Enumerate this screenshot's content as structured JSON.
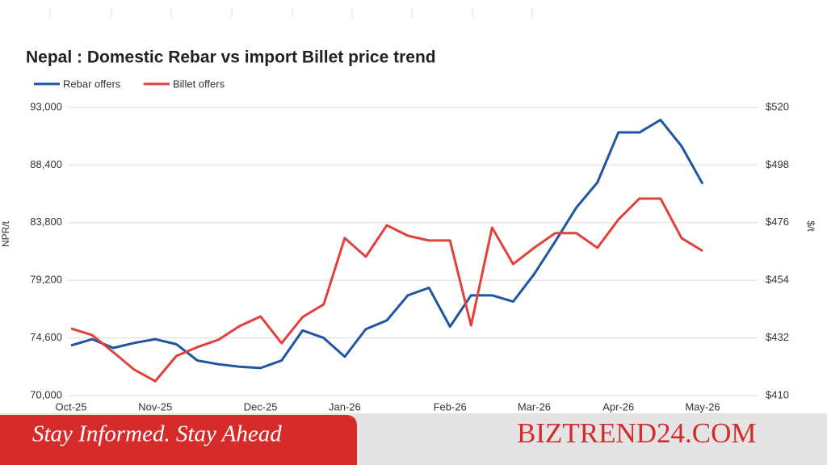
{
  "chart_data": {
    "type": "line",
    "title": "Nepal : Domestic Rebar vs import Billet price trend",
    "ylabel": "NPR/t",
    "y2label": "$/t",
    "categories": [
      "Oct-25",
      null,
      null,
      null,
      "Nov-25",
      null,
      null,
      null,
      null,
      "Dec-25",
      null,
      null,
      null,
      "Jan-26",
      null,
      null,
      null,
      null,
      "Feb-26",
      null,
      null,
      null,
      "Mar-26",
      null,
      null,
      null,
      "Apr-26",
      null,
      null,
      null,
      "May-26"
    ],
    "series": [
      {
        "name": "Rebar offers",
        "color": "#1f56a3",
        "values": [
          74000,
          74500,
          73800,
          74200,
          74500,
          74100,
          72800,
          72500,
          72300,
          72200,
          72800,
          75200,
          74600,
          73100,
          75300,
          76000,
          78000,
          78600,
          75500,
          78000,
          78000,
          77500,
          79700,
          82300,
          85000,
          87000,
          91000,
          91000,
          92000,
          89900,
          86900
        ]
      },
      {
        "name": "Billet offers",
        "color": "#e0413a",
        "axis": "y2",
        "values": [
          435.6,
          433.1,
          426.6,
          419.9,
          415.5,
          425.1,
          428.5,
          431.3,
          436.5,
          440.2,
          430,
          440,
          444.8,
          470.1,
          463,
          475,
          471,
          469.2,
          469.2,
          436.8,
          474.1,
          460.2,
          466.4,
          472,
          472,
          466.4,
          477.2,
          485.2,
          485.2,
          470.1,
          465.2
        ]
      }
    ],
    "ylim": [
      70000,
      93000
    ],
    "yticks": [
      {
        "value": 70000,
        "label": "70,000"
      },
      {
        "value": 74600,
        "label": "74,600"
      },
      {
        "value": 79200,
        "label": "79,200"
      },
      {
        "value": 83800,
        "label": "83,800"
      },
      {
        "value": 88400,
        "label": "88,400"
      },
      {
        "value": 93000,
        "label": "93,000"
      }
    ],
    "y2lim": [
      410,
      520
    ],
    "y2ticks": [
      {
        "value": 410,
        "label": "$410"
      },
      {
        "value": 432,
        "label": "$432"
      },
      {
        "value": 454,
        "label": "$454"
      },
      {
        "value": 476,
        "label": "$476"
      },
      {
        "value": 498,
        "label": "$498"
      },
      {
        "value": 520,
        "label": "$520"
      }
    ],
    "grid": true,
    "legend": "top-left"
  },
  "banner": {
    "slogan": "Stay Informed. Stay Ahead",
    "brand": "BIZTREND24.COM"
  }
}
